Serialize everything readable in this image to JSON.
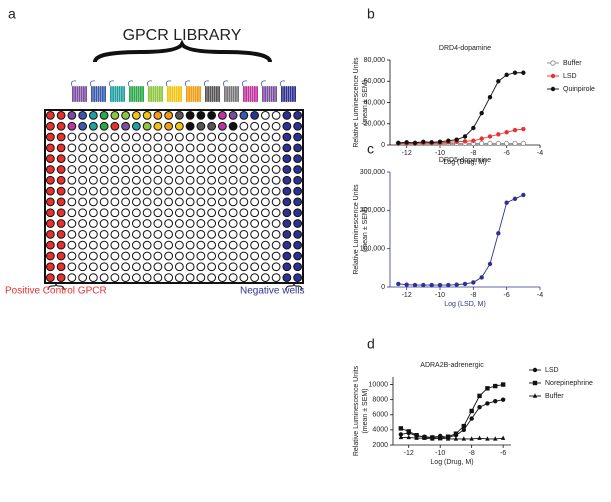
{
  "panel_a": {
    "label": "a",
    "title": "GPCR LIBRARY",
    "left_label": "Positive Control GPCR",
    "right_label": "Negative wells"
  },
  "chart_data": [
    {
      "type": "line",
      "panel": "b",
      "title": "DRD4-dopamine",
      "ylabel": [
        "Relative Luminescence Units",
        "(mean ± SEM)"
      ],
      "xlabel": "Log (Drug, M)",
      "x": [
        -12.5,
        -12,
        -11.5,
        -11,
        -10.5,
        -10,
        -9.5,
        -9,
        -8.5,
        -8,
        -7.5,
        -7,
        -6.5,
        -6,
        -5.5,
        -5
      ],
      "xlim": [
        -13,
        -4
      ],
      "xticks": [
        -12,
        -10,
        -8,
        -6,
        -4
      ],
      "ylim": [
        0,
        80000
      ],
      "yticks": [
        0,
        {
          "value": 20000,
          "label": "20,000"
        },
        {
          "value": 40000,
          "label": "40,000"
        },
        {
          "value": 60000,
          "label": "60,000"
        },
        {
          "value": 80000,
          "label": "80,000"
        }
      ],
      "series": [
        {
          "name": "Buffer",
          "color": "#888888",
          "marker": "open-circle",
          "values": [
            1500,
            1500,
            1500,
            1500,
            1500,
            1500,
            1500,
            1500,
            1500,
            1500,
            1500,
            1500,
            1500,
            1500,
            1500,
            1500
          ]
        },
        {
          "name": "LSD",
          "color": "#e8312f",
          "marker": "circle",
          "values": [
            1500,
            1500,
            1500,
            2000,
            2000,
            2000,
            2500,
            3000,
            3500,
            4000,
            6000,
            8000,
            10000,
            12000,
            14000,
            15000
          ]
        },
        {
          "name": "Quinpirole",
          "color": "#111111",
          "marker": "circle",
          "values": [
            2000,
            2500,
            2000,
            3000,
            2500,
            3000,
            4000,
            5000,
            8000,
            16000,
            30000,
            45000,
            60000,
            66000,
            68000,
            68000
          ]
        }
      ]
    },
    {
      "type": "line",
      "panel": "c",
      "title": "DRD5-dopamine",
      "ylabel": [
        "Relative Luminescence Units",
        "(mean ± SEM)"
      ],
      "xlabel": "Log (LSD, M)",
      "x": [
        -12.5,
        -12,
        -11.5,
        -11,
        -10.5,
        -10,
        -9.5,
        -9,
        -8.5,
        -8,
        -7.5,
        -7,
        -6.5,
        -6,
        -5.5,
        -5
      ],
      "xlim": [
        -13,
        -4
      ],
      "xticks": [
        -12,
        -10,
        -8,
        -6,
        -4
      ],
      "ylim": [
        0,
        300000
      ],
      "yticks": [
        0,
        {
          "value": 100000,
          "label": "100,000"
        },
        {
          "value": 200000,
          "label": "200,000"
        },
        {
          "value": 300000,
          "label": "300,000"
        }
      ],
      "series": [
        {
          "color": "#2e3192",
          "marker": "circle",
          "values": [
            8000,
            6000,
            5000,
            5000,
            5000,
            5000,
            5000,
            6000,
            8000,
            12000,
            25000,
            60000,
            140000,
            220000,
            230000,
            240000
          ]
        }
      ]
    },
    {
      "type": "line",
      "panel": "d",
      "title": "ADRA2B-adrenergic",
      "ylabel": [
        "Relative Luminescence Units",
        "(mean ± SEM)"
      ],
      "xlabel": "Log (Drug, M)",
      "x": [
        -12.5,
        -12,
        -11.5,
        -11,
        -10.5,
        -10,
        -9.5,
        -9,
        -8.5,
        -8,
        -7.5,
        -7,
        -6.5,
        -6
      ],
      "xlim": [
        -13,
        -5.5
      ],
      "xticks": [
        -12,
        -10,
        -8,
        -6
      ],
      "ylim": [
        2000,
        11000
      ],
      "yticks": [
        2000,
        4000,
        6000,
        8000,
        10000
      ],
      "series": [
        {
          "name": "LSD",
          "color": "#111111",
          "marker": "circle",
          "values": [
            3400,
            3600,
            3200,
            3100,
            3000,
            3200,
            3000,
            3300,
            4000,
            5500,
            7000,
            7500,
            7800,
            8000
          ]
        },
        {
          "name": "Norepinephrine",
          "color": "#111111",
          "marker": "square",
          "values": [
            4200,
            3800,
            3300,
            3000,
            3000,
            2900,
            3100,
            3500,
            4500,
            6500,
            8500,
            9500,
            9800,
            10000
          ]
        },
        {
          "name": "Buffer",
          "color": "#111111",
          "marker": "triangle",
          "values": [
            3000,
            3000,
            2900,
            2900,
            2800,
            2900,
            2800,
            2800,
            2800,
            2800,
            2900,
            2800,
            2800,
            2900
          ]
        }
      ]
    }
  ]
}
